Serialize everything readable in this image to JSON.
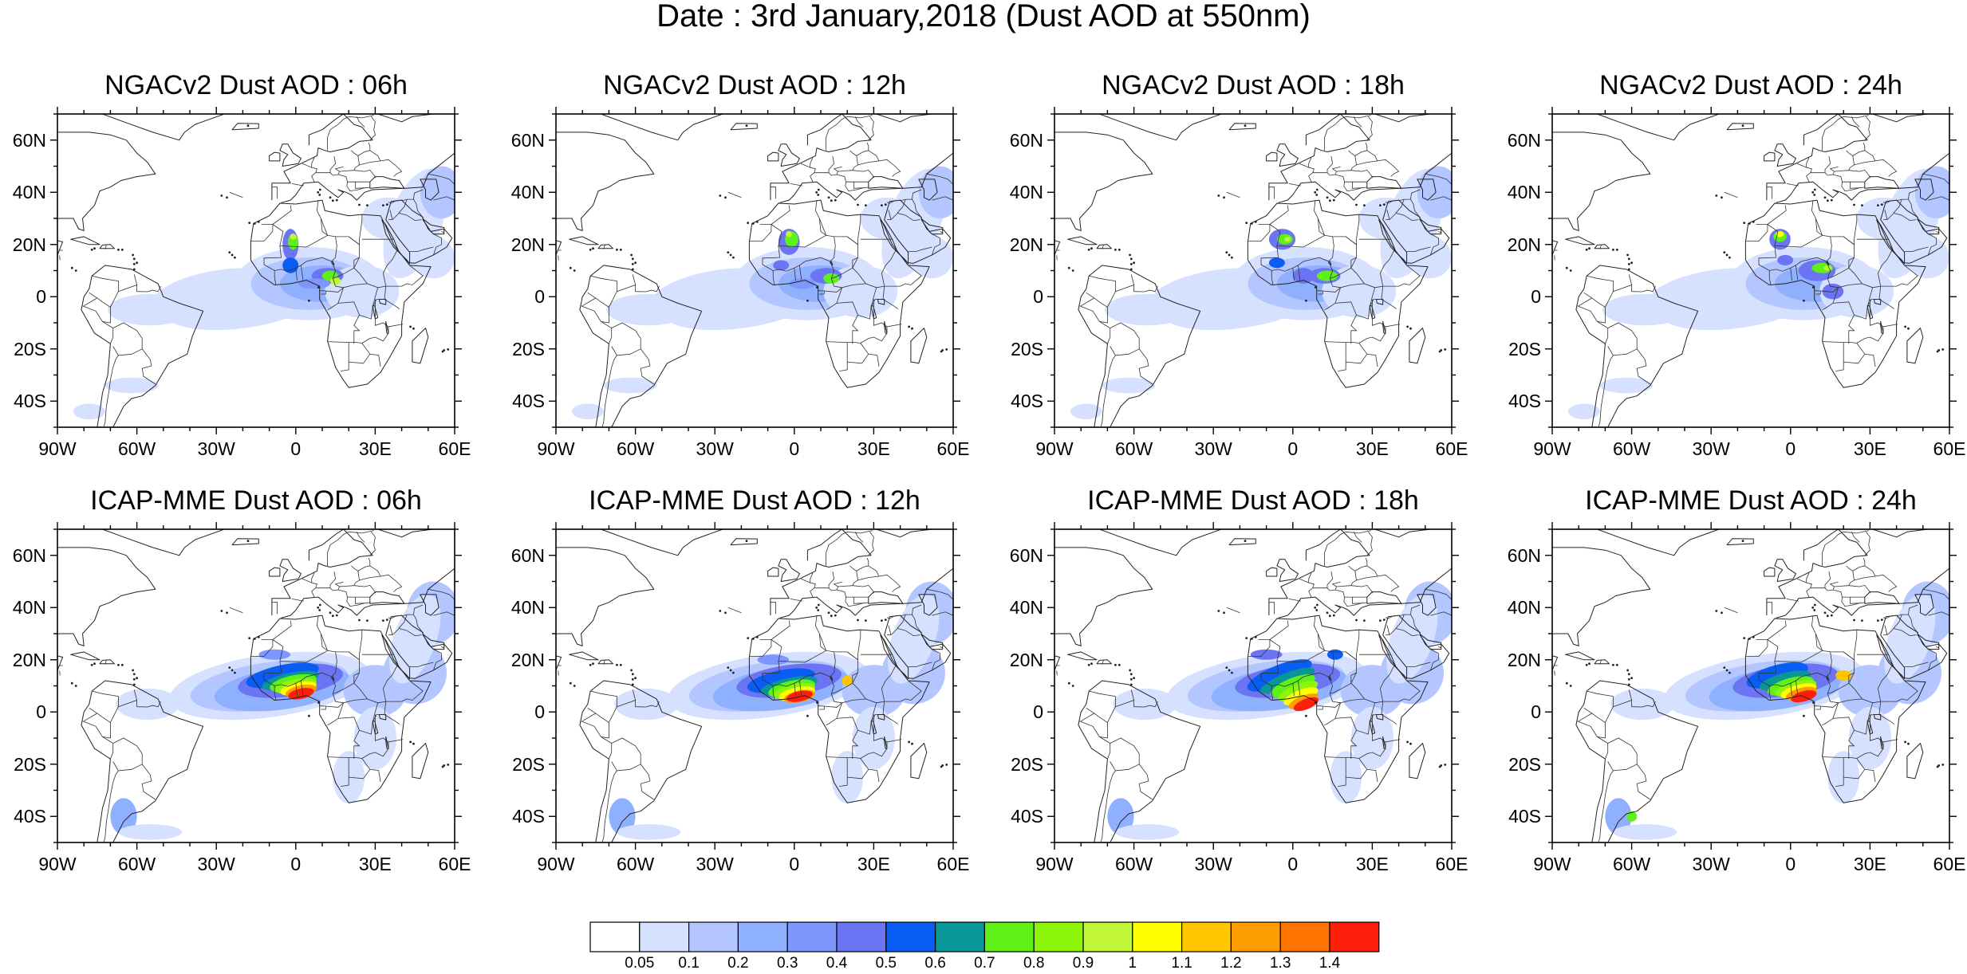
{
  "figure": {
    "title": "Date : 3rd January,2018 (Dust AOD at 550nm)"
  },
  "panels": [
    {
      "title": "NGACv2 Dust AOD : 06h",
      "model": "NGACv2",
      "hour": "06h"
    },
    {
      "title": "NGACv2 Dust AOD : 12h",
      "model": "NGACv2",
      "hour": "12h"
    },
    {
      "title": "NGACv2 Dust AOD : 18h",
      "model": "NGACv2",
      "hour": "18h"
    },
    {
      "title": "NGACv2 Dust AOD : 24h",
      "model": "NGACv2",
      "hour": "24h"
    },
    {
      "title": "ICAP-MME Dust AOD : 06h",
      "model": "ICAP-MME",
      "hour": "06h"
    },
    {
      "title": "ICAP-MME Dust AOD : 12h",
      "model": "ICAP-MME",
      "hour": "12h"
    },
    {
      "title": "ICAP-MME Dust AOD : 18h",
      "model": "ICAP-MME",
      "hour": "18h"
    },
    {
      "title": "ICAP-MME Dust AOD : 24h",
      "model": "ICAP-MME",
      "hour": "24h"
    }
  ],
  "axes": {
    "lat_labels": [
      "60N",
      "40N",
      "20N",
      "0",
      "20S",
      "40S"
    ],
    "lat_values": [
      60,
      40,
      20,
      0,
      -20,
      -40
    ],
    "lon_labels": [
      "90W",
      "60W",
      "30W",
      "0",
      "30E",
      "60E"
    ],
    "lon_values": [
      -90,
      -60,
      -30,
      0,
      30,
      60
    ],
    "lat_range": [
      -50,
      70
    ],
    "lon_range": [
      -90,
      60
    ]
  },
  "colorbar": {
    "labels": [
      "0.05",
      "0.1",
      "0.2",
      "0.3",
      "0.4",
      "0.5",
      "0.6",
      "0.7",
      "0.8",
      "0.9",
      "1",
      "1.1",
      "1.2",
      "1.3",
      "1.4"
    ],
    "colors": [
      "#ffffff",
      "#d6e0ff",
      "#b4c6ff",
      "#8fb0ff",
      "#7f96ff",
      "#6b74f2",
      "#0a5df2",
      "#0a9696",
      "#5ef018",
      "#8cf50a",
      "#c0f538",
      "#ffff00",
      "#ffc600",
      "#ff9e00",
      "#ff7300",
      "#ff1e0a"
    ]
  }
}
